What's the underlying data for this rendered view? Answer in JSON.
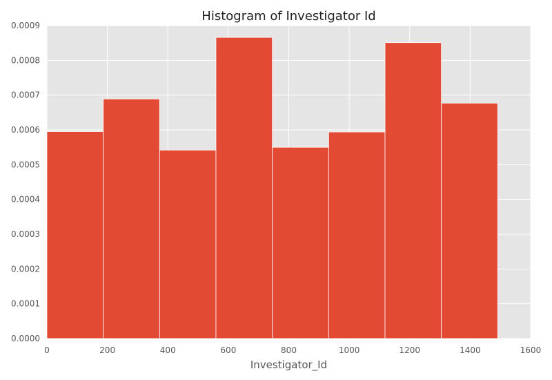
{
  "chart_data": {
    "type": "bar",
    "title": "Histogram of Investigator Id",
    "xlabel": "Investigator_Id",
    "ylabel": "",
    "xlim": [
      0,
      1600
    ],
    "ylim": [
      0,
      0.0009
    ],
    "x_ticks": [
      "0",
      "200",
      "400",
      "600",
      "800",
      "1000",
      "1200",
      "1400",
      "1600"
    ],
    "y_ticks": [
      "0.0000",
      "0.0001",
      "0.0002",
      "0.0003",
      "0.0004",
      "0.0005",
      "0.0006",
      "0.0007",
      "0.0008",
      "0.0009"
    ],
    "bin_edges": [
      0,
      186.4,
      372.8,
      559.2,
      745.6,
      932,
      1118.4,
      1304.8,
      1491.2
    ],
    "values": [
      0.000595,
      0.000689,
      0.000542,
      0.000866,
      0.00055,
      0.000594,
      0.000851,
      0.000677
    ],
    "grid": true,
    "colors": {
      "bar": "#E24A33",
      "plot_background": "#E5E5E5",
      "grid": "#FFFFFF"
    }
  }
}
